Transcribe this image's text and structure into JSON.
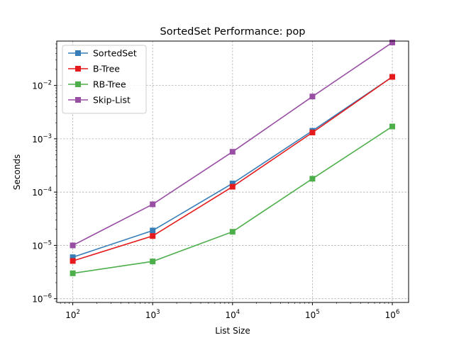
{
  "chart_data": {
    "type": "line",
    "title": "SortedSet Performance: pop",
    "xlabel": "List Size",
    "ylabel": "Seconds",
    "xscale": "log",
    "yscale": "log",
    "x": [
      100,
      1000,
      10000,
      100000,
      1000000
    ],
    "xlim": [
      63,
      1600000
    ],
    "ylim": [
      8.5e-07,
      0.068
    ],
    "x_ticks": [
      {
        "value": 100,
        "base": "10",
        "exp": "2"
      },
      {
        "value": 1000,
        "base": "10",
        "exp": "3"
      },
      {
        "value": 10000,
        "base": "10",
        "exp": "4"
      },
      {
        "value": 100000,
        "base": "10",
        "exp": "5"
      },
      {
        "value": 1000000,
        "base": "10",
        "exp": "6"
      }
    ],
    "y_ticks": [
      {
        "value": 1e-06,
        "base": "10",
        "exp": "−6"
      },
      {
        "value": 1e-05,
        "base": "10",
        "exp": "−5"
      },
      {
        "value": 0.0001,
        "base": "10",
        "exp": "−4"
      },
      {
        "value": 0.001,
        "base": "10",
        "exp": "−3"
      },
      {
        "value": 0.01,
        "base": "10",
        "exp": "−2"
      }
    ],
    "grid": true,
    "legend_position": "top-left",
    "series": [
      {
        "name": "SortedSet",
        "color": "#377eb8",
        "values": [
          6e-06,
          1.9e-05,
          0.000145,
          0.00141,
          0.0145
        ]
      },
      {
        "name": "B-Tree",
        "color": "#e41a1c",
        "values": [
          5.1e-06,
          1.5e-05,
          0.000126,
          0.00131,
          0.0145
        ]
      },
      {
        "name": "RB-Tree",
        "color": "#4daf4a",
        "values": [
          3e-06,
          5e-06,
          1.8e-05,
          0.000178,
          0.0017
        ]
      },
      {
        "name": "Skip-List",
        "color": "#984ea3",
        "values": [
          1e-05,
          5.9e-05,
          0.00057,
          0.0062,
          0.064
        ]
      }
    ]
  }
}
